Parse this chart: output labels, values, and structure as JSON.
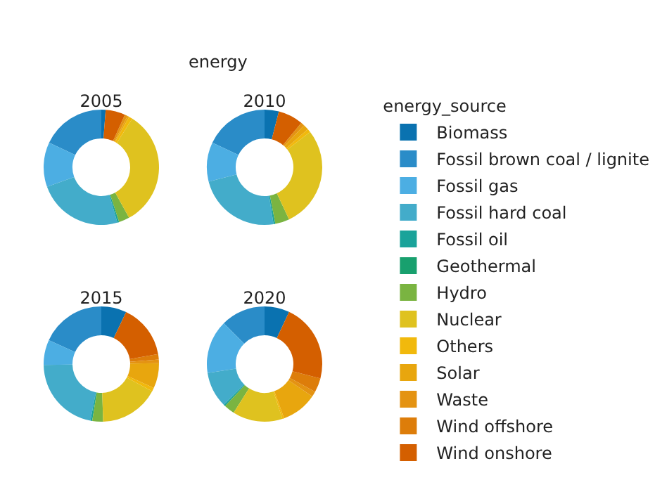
{
  "chart_data": {
    "type": "donut",
    "title": "energy",
    "legend_title": "energy_source",
    "legend": "right",
    "categories": [
      "Biomass",
      "Fossil brown coal / lignite",
      "Fossil gas",
      "Fossil hard coal",
      "Fossil oil",
      "Geothermal",
      "Hydro",
      "Nuclear",
      "Others",
      "Solar",
      "Waste",
      "Wind offshore",
      "Wind onshore"
    ],
    "colors": [
      "#0a72b0",
      "#2a8cc8",
      "#4caee3",
      "#43acca",
      "#1aa39a",
      "#18a06e",
      "#7ab441",
      "#dfc21f",
      "#f1b90c",
      "#e8a60e",
      "#e49312",
      "#dd7d0a",
      "#d45f00"
    ],
    "series": [
      {
        "name": "2005",
        "values": [
          1.2,
          18,
          12.5,
          24,
          0.5,
          0,
          3,
          33,
          1,
          0.5,
          0.8,
          0,
          5.5
        ]
      },
      {
        "name": "2010",
        "values": [
          4,
          18,
          11,
          23.5,
          0.5,
          0,
          4,
          28.5,
          1,
          1.5,
          1,
          0,
          7
        ]
      },
      {
        "name": "2015",
        "values": [
          7,
          18,
          7,
          21.5,
          0.5,
          0,
          3,
          16.5,
          1,
          7,
          1,
          1.5,
          15
        ]
      },
      {
        "name": "2020",
        "values": [
          7,
          12.5,
          15,
          10,
          0.5,
          0,
          3,
          14,
          0.5,
          10,
          1.5,
          4,
          22
        ]
      }
    ]
  }
}
